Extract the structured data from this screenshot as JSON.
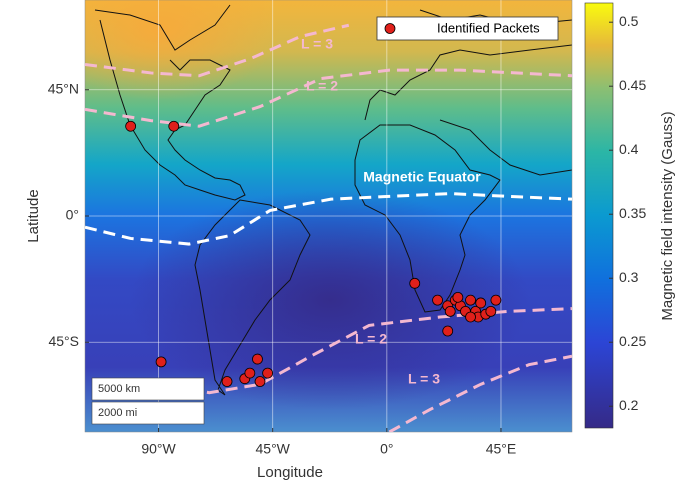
{
  "chart_data": {
    "type": "scatter",
    "xlabel": "Longitude",
    "ylabel": "Latitude",
    "xlim": [
      -119,
      73
    ],
    "ylim": [
      -77,
      77
    ],
    "xticks": [
      {
        "value": -90,
        "label": "90°W"
      },
      {
        "value": -45,
        "label": "45°W"
      },
      {
        "value": 0,
        "label": "0°"
      },
      {
        "value": 45,
        "label": "45°E"
      }
    ],
    "yticks": [
      {
        "value": 45,
        "label": "45°N"
      },
      {
        "value": 0,
        "label": "0°"
      },
      {
        "value": -45,
        "label": "45°S"
      }
    ],
    "grid": true,
    "legend": "upper right",
    "series": [
      {
        "name": "Identified Packets",
        "color": "#e0201b",
        "x": [
          -101,
          -84,
          -89,
          -63,
          -56,
          -54,
          -51,
          -50,
          -47,
          11,
          20,
          24,
          25,
          27,
          29,
          31,
          28,
          33,
          35,
          36,
          33,
          39,
          37,
          41,
          43,
          24
        ],
        "values": [
          32,
          32,
          -52,
          -59,
          -58,
          -56,
          -51,
          -59,
          -56,
          -24,
          -30,
          -32,
          -34,
          -30,
          -32,
          -34,
          -29,
          -30,
          -34,
          -36,
          -36,
          -35,
          -31,
          -34,
          -30,
          -41
        ]
      }
    ],
    "lines": [
      {
        "name": "Magnetic Equator",
        "color": "#ffffff",
        "x": [
          -119,
          -101,
          -78,
          -62,
          -46,
          -22,
          1,
          25,
          48,
          73
        ],
        "values": [
          -4,
          -8,
          -10,
          -7,
          2,
          6,
          7,
          8,
          7,
          6
        ]
      },
      {
        "name": "L = 2",
        "color": "#f4b8d0",
        "x": [
          -119,
          -93,
          -74,
          -50,
          -26,
          1,
          29,
          73
        ],
        "values": [
          38,
          34,
          32,
          39,
          49,
          52,
          52,
          50
        ]
      },
      {
        "name": "L = 3",
        "color": "#f4b8d0",
        "x": [
          -119,
          -93,
          -74,
          -54,
          -34,
          -15
        ],
        "values": [
          54,
          51,
          50,
          56,
          64,
          68
        ]
      },
      {
        "name": "L = 2",
        "color": "#f4b8d0",
        "x": [
          -93,
          -70,
          -50,
          -30,
          -7,
          21,
          48,
          73
        ],
        "values": [
          -59,
          -63,
          -60,
          -50,
          -39,
          -36,
          -34,
          -33
        ]
      },
      {
        "name": "L = 3",
        "color": "#f4b8d0",
        "x": [
          1,
          17,
          37,
          56,
          73
        ],
        "values": [
          -77,
          -69,
          -60,
          -53,
          -50
        ]
      }
    ],
    "scale_bar": [
      "5000 km",
      "2000 mi"
    ],
    "colorbar": {
      "label": "Magnetic field intensity (Gauss)",
      "lim": [
        0.183,
        0.515
      ],
      "ticks": [
        0.2,
        0.25,
        0.3,
        0.35,
        0.4,
        0.45,
        0.5
      ]
    }
  }
}
